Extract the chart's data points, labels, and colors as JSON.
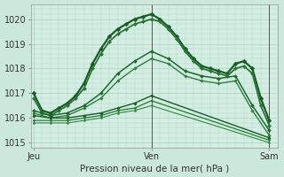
{
  "xlabel": "Pression niveau de la mer( hPa )",
  "background_color": "#cce8dc",
  "plot_bg_color": "#d4eee3",
  "grid_color": "#b0d4c4",
  "ylim": [
    1014.8,
    1020.6
  ],
  "yticks": [
    1015,
    1016,
    1017,
    1018,
    1019,
    1020
  ],
  "xlim": [
    -0.3,
    29.0
  ],
  "day_labels": [
    "Jeu",
    "Ven",
    "Sam"
  ],
  "day_positions": [
    0,
    14,
    28
  ],
  "lines": [
    {
      "x": [
        0,
        1,
        2,
        3,
        4,
        5,
        6,
        7,
        8,
        9,
        10,
        11,
        12,
        13,
        14,
        15,
        16,
        17,
        18,
        19,
        20,
        21,
        22,
        23,
        24,
        25,
        26,
        27,
        28
      ],
      "y": [
        1017.0,
        1016.3,
        1016.2,
        1016.4,
        1016.6,
        1016.9,
        1017.4,
        1018.2,
        1018.8,
        1019.3,
        1019.6,
        1019.8,
        1020.0,
        1020.1,
        1020.2,
        1020.0,
        1019.7,
        1019.3,
        1018.8,
        1018.4,
        1018.1,
        1018.0,
        1017.9,
        1017.8,
        1018.2,
        1018.3,
        1018.0,
        1016.8,
        1015.9
      ],
      "color": "#1a5c28",
      "lw": 1.6,
      "marker": "D",
      "ms": 2.5
    },
    {
      "x": [
        0,
        1,
        2,
        3,
        4,
        5,
        6,
        7,
        8,
        9,
        10,
        11,
        12,
        13,
        14,
        15,
        16,
        17,
        18,
        19,
        20,
        21,
        22,
        23,
        24,
        25,
        26,
        27,
        28
      ],
      "y": [
        1016.8,
        1016.2,
        1016.1,
        1016.3,
        1016.5,
        1016.8,
        1017.2,
        1018.0,
        1018.6,
        1019.1,
        1019.4,
        1019.6,
        1019.8,
        1019.9,
        1020.0,
        1019.9,
        1019.6,
        1019.2,
        1018.7,
        1018.3,
        1018.0,
        1017.9,
        1017.8,
        1017.7,
        1018.0,
        1018.1,
        1017.8,
        1016.5,
        1015.7
      ],
      "color": "#2a7535",
      "lw": 1.3,
      "marker": "D",
      "ms": 2.2
    },
    {
      "x": [
        0,
        2,
        4,
        6,
        8,
        10,
        12,
        14,
        16,
        18,
        20,
        22,
        24,
        26,
        28
      ],
      "y": [
        1016.3,
        1016.1,
        1016.2,
        1016.5,
        1017.0,
        1017.8,
        1018.3,
        1018.7,
        1018.4,
        1017.9,
        1017.7,
        1017.6,
        1017.7,
        1016.5,
        1015.5
      ],
      "color": "#1e6830",
      "lw": 1.1,
      "marker": "D",
      "ms": 2.0
    },
    {
      "x": [
        0,
        2,
        4,
        6,
        8,
        10,
        12,
        14,
        16,
        18,
        20,
        22,
        24,
        26,
        28
      ],
      "y": [
        1016.2,
        1016.0,
        1016.1,
        1016.4,
        1016.8,
        1017.5,
        1018.0,
        1018.4,
        1018.2,
        1017.7,
        1017.5,
        1017.4,
        1017.5,
        1016.3,
        1015.3
      ],
      "color": "#2e8040",
      "lw": 1.0,
      "marker": "D",
      "ms": 1.8
    },
    {
      "x": [
        0,
        2,
        4,
        6,
        8,
        10,
        12,
        14,
        28
      ],
      "y": [
        1016.1,
        1016.0,
        1016.0,
        1016.1,
        1016.2,
        1016.4,
        1016.6,
        1016.9,
        1015.2
      ],
      "color": "#1a5c28",
      "lw": 1.0,
      "marker": "D",
      "ms": 1.8
    },
    {
      "x": [
        0,
        2,
        4,
        6,
        8,
        10,
        12,
        14,
        28
      ],
      "y": [
        1015.9,
        1015.9,
        1015.9,
        1016.0,
        1016.1,
        1016.3,
        1016.4,
        1016.7,
        1015.1
      ],
      "color": "#267a32",
      "lw": 0.9,
      "marker": "D",
      "ms": 1.5
    },
    {
      "x": [
        0,
        2,
        4,
        6,
        8,
        10,
        12,
        14,
        28
      ],
      "y": [
        1015.8,
        1015.8,
        1015.8,
        1015.9,
        1016.0,
        1016.2,
        1016.3,
        1016.5,
        1015.0
      ],
      "color": "#338840",
      "lw": 0.8,
      "marker": "D",
      "ms": 1.4
    }
  ]
}
